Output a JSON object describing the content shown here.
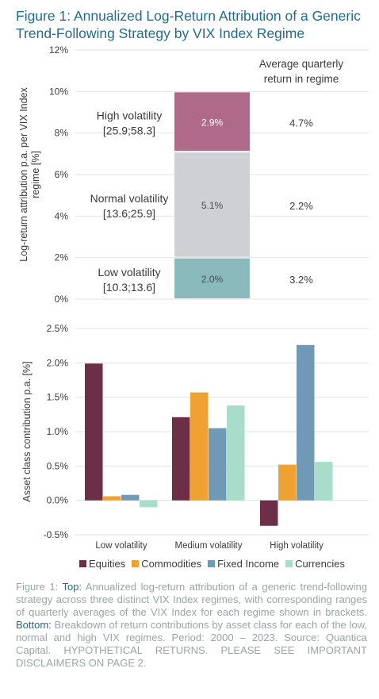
{
  "figure_title": "Figure 1: Annualized Log-Return Attribution of a Generic Trend-Following Strategy by VIX Index Regime",
  "colors": {
    "title": "#1f6d8c",
    "high_vol": "#b06a89",
    "normal_vol": "#cfd0d3",
    "low_vol": "#8bbabd",
    "equities": "#6c2f47",
    "commodities": "#efa132",
    "fixed_income": "#6f99b4",
    "currencies": "#a7ddc9"
  },
  "chart_data": [
    {
      "type": "bar",
      "stacked": true,
      "ylabel": "Log-return attribution p.a. per VIX Index regime [%]",
      "ylim": [
        0,
        12
      ],
      "yticks": [
        "0%",
        "2%",
        "4%",
        "6%",
        "8%",
        "10%",
        "12%"
      ],
      "grid": true,
      "right_header": "Average quarterly return in regime",
      "segments": [
        {
          "regime": "Low volatility",
          "range": "[10.3;13.6]",
          "value": 2.0,
          "label": "2.0%",
          "avg_quarterly_return": "3.2%"
        },
        {
          "regime": "Normal volatility",
          "range": "[13.6;25.9]",
          "value": 5.1,
          "label": "5.1%",
          "avg_quarterly_return": "2.2%"
        },
        {
          "regime": "High volatility",
          "range": "[25.9;58.3]",
          "value": 2.9,
          "label": "2.9%",
          "avg_quarterly_return": "4.7%"
        }
      ]
    },
    {
      "type": "bar",
      "ylabel": "Asset class contribution p.a. [%]",
      "ylim": [
        -0.5,
        2.5
      ],
      "yticks": [
        "-0.5%",
        "0.0%",
        "0.5%",
        "1.0%",
        "1.5%",
        "2.0%",
        "2.5%"
      ],
      "grid": true,
      "categories": [
        "Low volatility",
        "Medium volatility",
        "High volatility"
      ],
      "series": [
        {
          "name": "Equities",
          "values": [
            1.99,
            1.21,
            -0.37
          ]
        },
        {
          "name": "Commodities",
          "values": [
            0.06,
            1.57,
            0.52
          ]
        },
        {
          "name": "Fixed Income",
          "values": [
            0.08,
            1.05,
            2.26
          ]
        },
        {
          "name": "Currencies",
          "values": [
            -0.1,
            1.38,
            0.56
          ]
        }
      ],
      "legend": "bottom"
    }
  ],
  "caption": {
    "intro": "Figure 1: ",
    "top_label": "Top:",
    "top_text": " Annualized log-return attribution of a generic trend-following strategy across three distinct VIX Index regimes, with corresponding ranges of quarterly averages of the VIX Index for each regime shown in brackets. ",
    "bottom_label": "Bottom:",
    "bottom_text": " Breakdown of return contributions by asset class for each of the low, normal and high VIX regimes. Period: 2000 – 2023. Source: Quantica Capital. HYPOTHETICAL RETURNS. PLEASE SEE IMPORTANT DISCLAIMERS ON PAGE 2."
  }
}
